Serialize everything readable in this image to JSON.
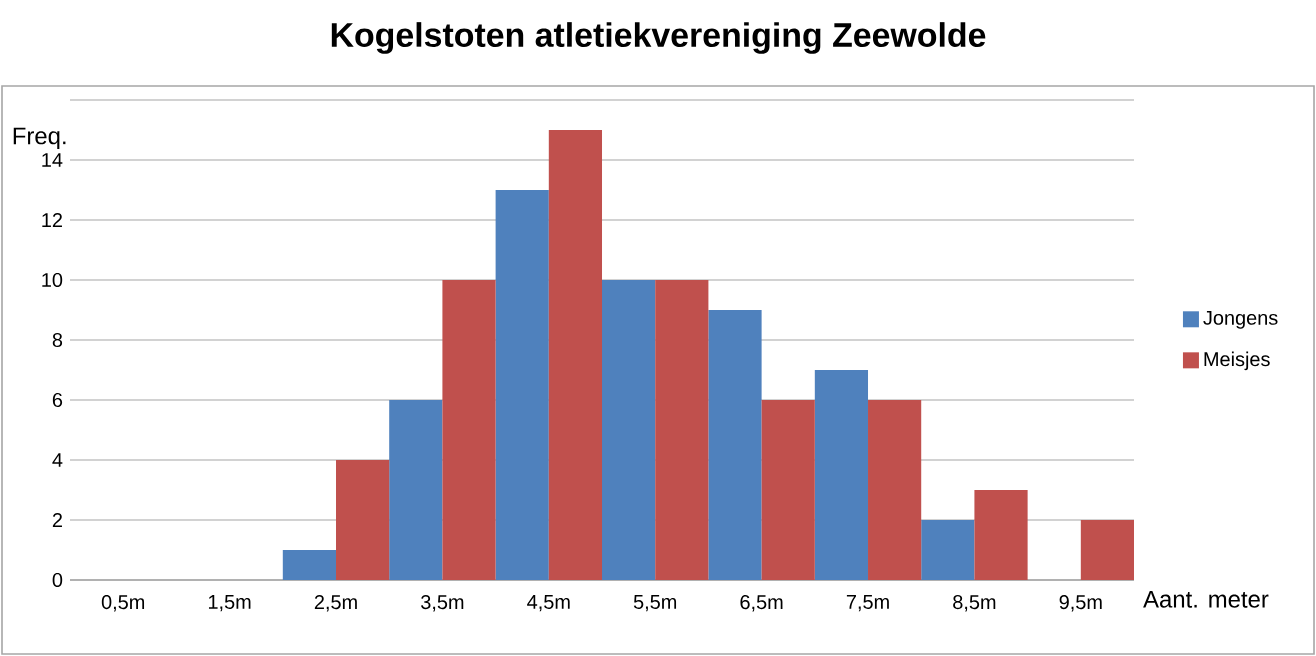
{
  "chart_data": {
    "type": "bar",
    "title": "Kogelstoten atletiekvereniging Zeewolde",
    "xlabel": "Aant. meter",
    "ylabel": "Freq.",
    "categories": [
      "0,5m",
      "1,5m",
      "2,5m",
      "3,5m",
      "4,5m",
      "5,5m",
      "6,5m",
      "7,5m",
      "8,5m",
      "9,5m"
    ],
    "series": [
      {
        "name": "Jongens",
        "color": "#4f81bd",
        "values": [
          0,
          0,
          1,
          6,
          13,
          10,
          9,
          7,
          2,
          0
        ]
      },
      {
        "name": "Meisjes",
        "color": "#c0504d",
        "values": [
          0,
          0,
          4,
          10,
          15,
          10,
          6,
          6,
          3,
          2
        ]
      }
    ],
    "ylim": [
      0,
      16
    ],
    "yticks": [
      0,
      2,
      4,
      6,
      8,
      10,
      12,
      14,
      {
        "value": 16,
        "label": null
      }
    ],
    "grid": "y",
    "legend": "right"
  }
}
